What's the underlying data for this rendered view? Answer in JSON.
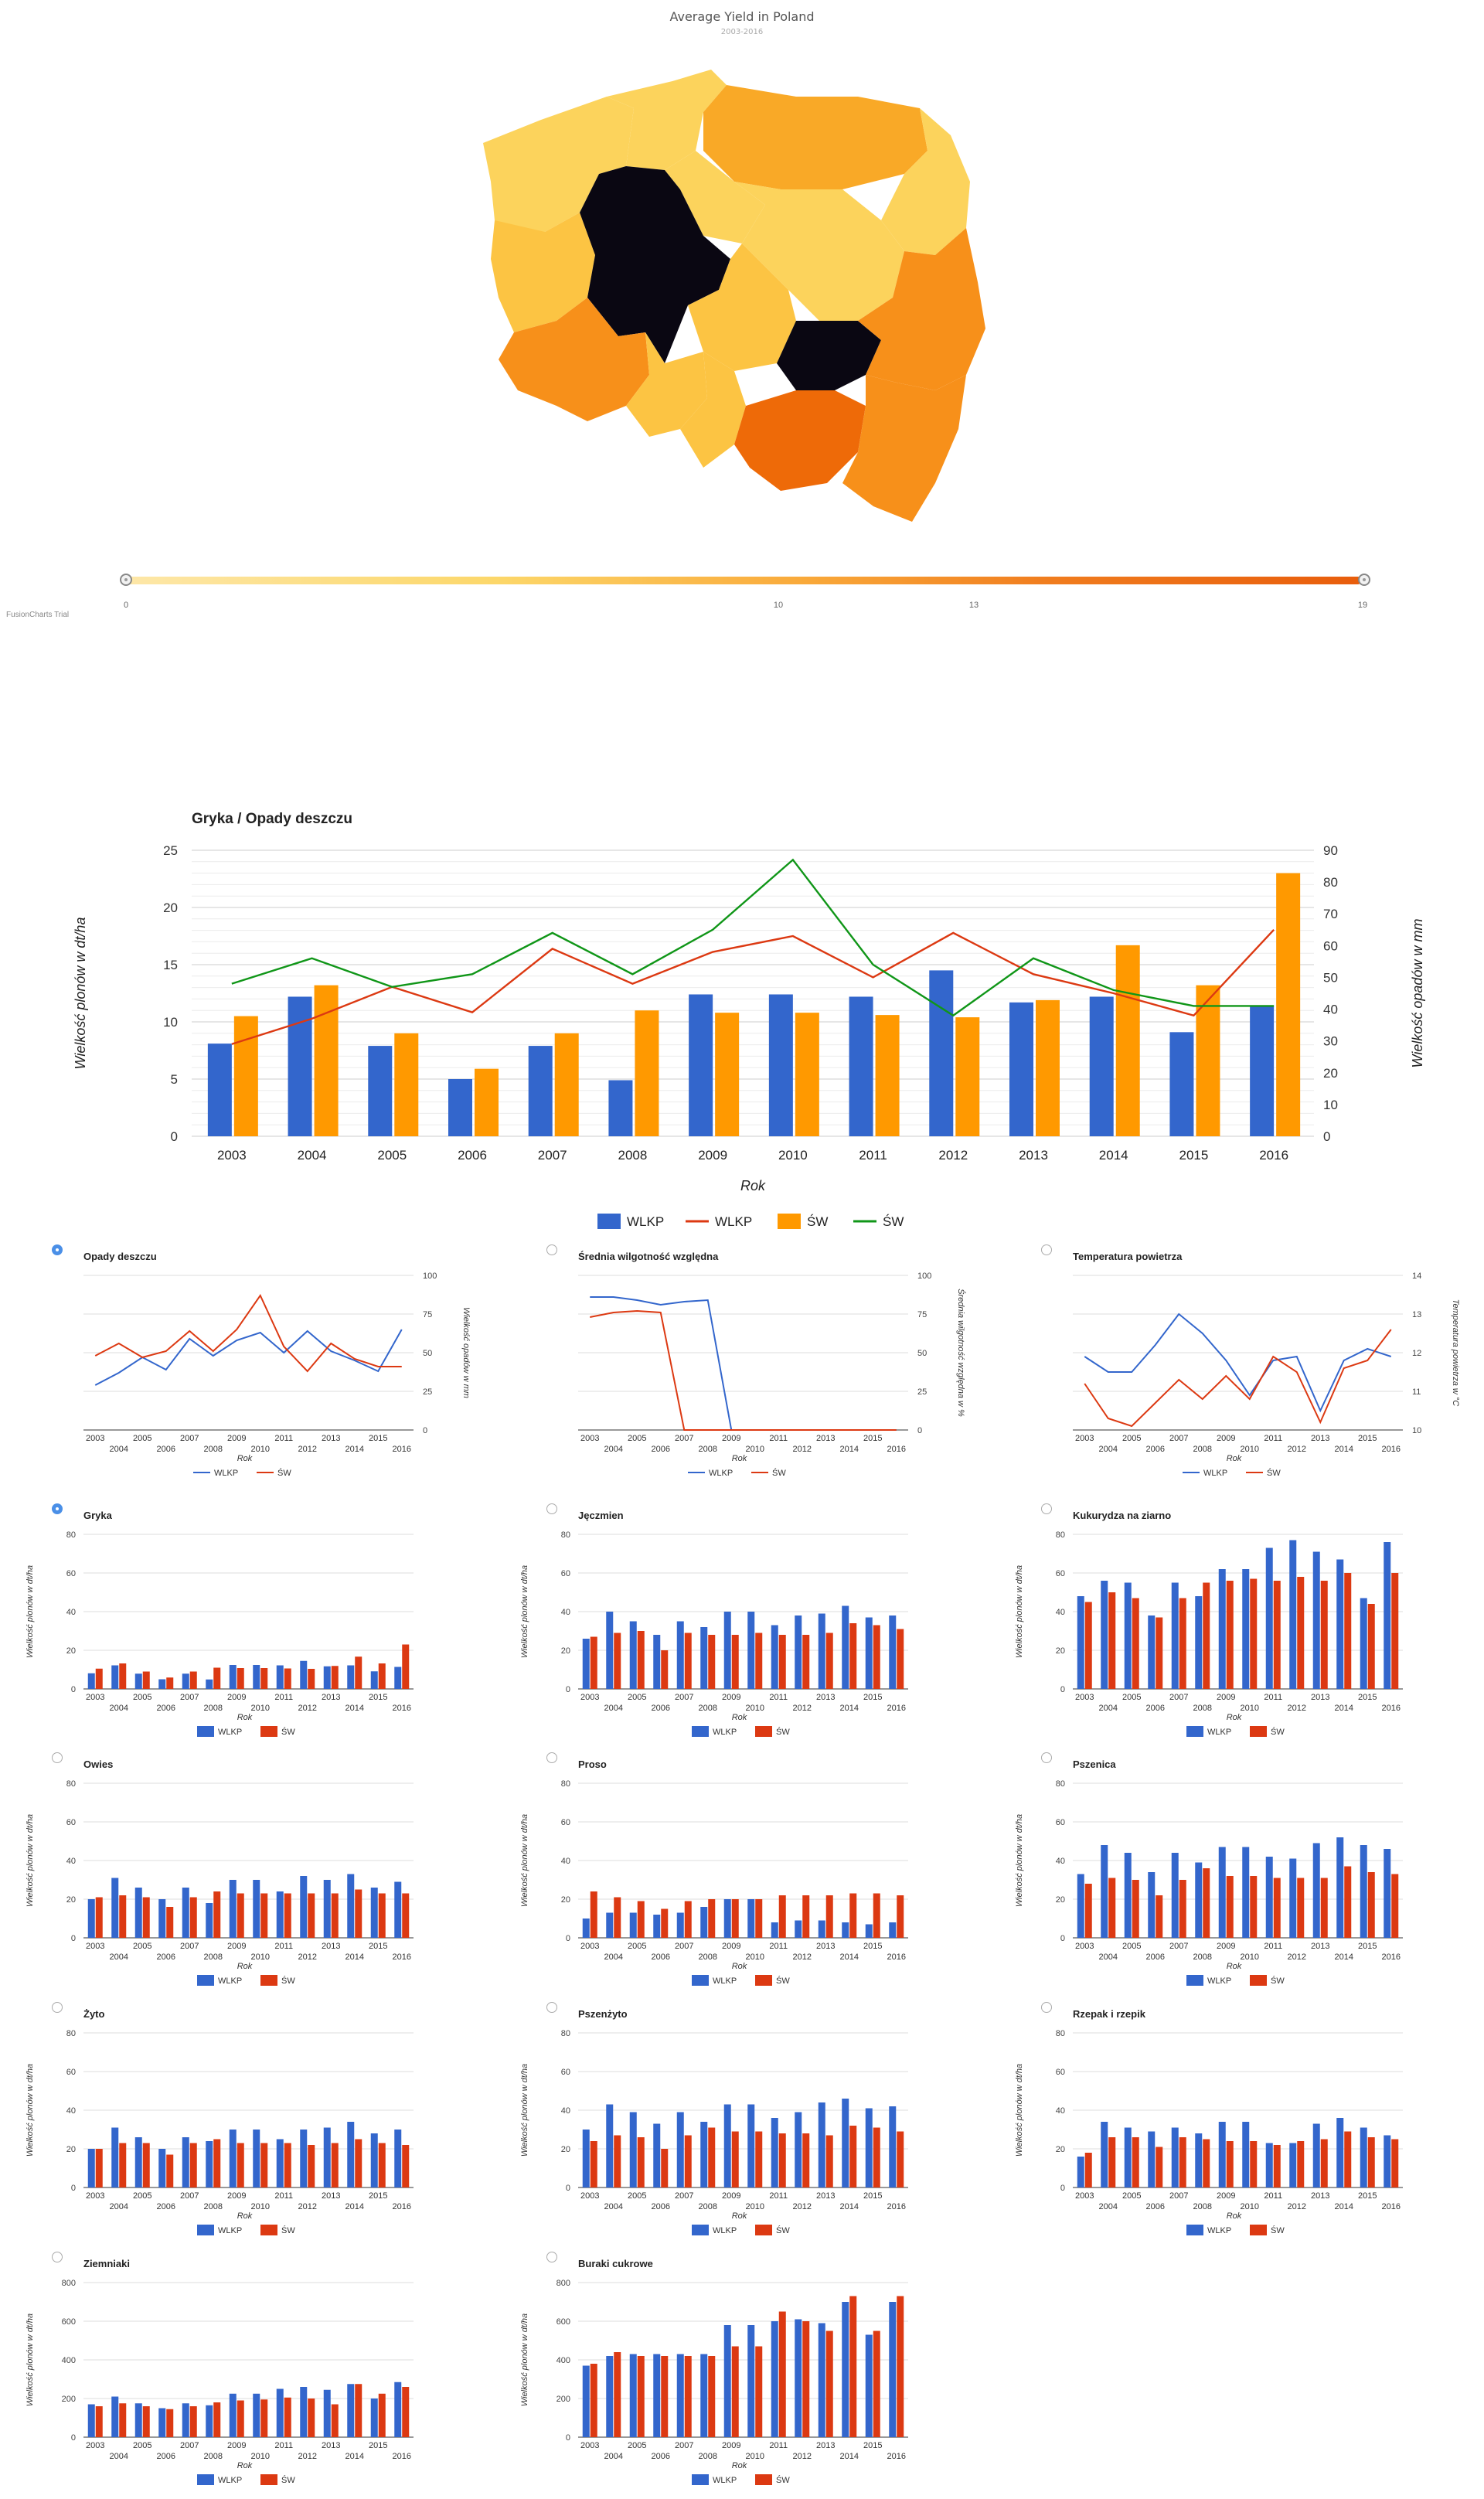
{
  "map": {
    "title": "Average Yield in Poland",
    "subtitle": "2003-2016",
    "scale_min": "0",
    "scale_ticks": [
      "10",
      "13"
    ],
    "scale_max": "19",
    "watermark": "FusionCharts Trial"
  },
  "main_chart": {
    "title": "Gryka / Opady deszczu",
    "ylabel_left": "Wielkość plonów w dt/ha",
    "ylabel_right": "Wielkość opadów w mm",
    "xlabel": "Rok",
    "legend": [
      "WLKP",
      "WLKP",
      "ŚW",
      "ŚW"
    ]
  },
  "weather_charts": [
    {
      "title": "Opady deszczu",
      "ylabel": "Wielkość opadów w mm"
    },
    {
      "title": "Średnia wilgotność względna",
      "ylabel": "Średnia wilgotność względna w %"
    },
    {
      "title": "Temperatura powietrza",
      "ylabel": "Temperatura powietrza w °C"
    }
  ],
  "crop_labels": {
    "ylabel": "Wielkość plonów w dt/ha",
    "xlabel": "Rok",
    "series1": "WLKP",
    "series2": "ŚW"
  },
  "colors": {
    "blue": "#3366cc",
    "red": "#dc3912",
    "orange": "#ff9900",
    "green": "#109618"
  },
  "chart_data": [
    {
      "type": "bar",
      "name": "main",
      "categories": [
        "2003",
        "2004",
        "2005",
        "2006",
        "2007",
        "2008",
        "2009",
        "2010",
        "2011",
        "2012",
        "2013",
        "2014",
        "2015",
        "2016"
      ],
      "series": [
        {
          "name": "WLKP",
          "type": "bar",
          "values": [
            8.1,
            12.2,
            7.9,
            5.0,
            7.9,
            4.9,
            12.4,
            12.4,
            12.2,
            14.5,
            11.7,
            12.2,
            9.1,
            11.4
          ]
        },
        {
          "name": "ŚW",
          "type": "bar",
          "values": [
            10.5,
            13.2,
            9.0,
            5.9,
            9.0,
            11.0,
            10.8,
            10.8,
            10.6,
            10.4,
            11.9,
            16.7,
            13.2,
            23.0
          ]
        },
        {
          "name": "WLKP",
          "type": "line",
          "axis": "right",
          "values": [
            29,
            37,
            47,
            39,
            59,
            48,
            58,
            63,
            50,
            64,
            51,
            45,
            38,
            65
          ]
        },
        {
          "name": "ŚW",
          "type": "line",
          "axis": "right",
          "values": [
            48,
            56,
            47,
            51,
            64,
            51,
            65,
            87,
            54,
            38,
            56,
            46,
            41,
            41
          ]
        }
      ],
      "ylim": [
        0,
        25
      ],
      "y2lim": [
        0,
        90
      ]
    },
    {
      "type": "line",
      "name": "Opady deszczu",
      "x": [
        "2003",
        "2004",
        "2005",
        "2006",
        "2007",
        "2008",
        "2009",
        "2010",
        "2011",
        "2012",
        "2013",
        "2014",
        "2015",
        "2016"
      ],
      "series": [
        {
          "name": "WLKP",
          "values": [
            29,
            37,
            47,
            39,
            59,
            48,
            58,
            63,
            50,
            64,
            51,
            45,
            38,
            65
          ]
        },
        {
          "name": "ŚW",
          "values": [
            48,
            56,
            47,
            51,
            64,
            51,
            65,
            87,
            54,
            38,
            56,
            46,
            41,
            41
          ]
        }
      ],
      "ylim": [
        0,
        100
      ],
      "ticks": [
        "0",
        "25",
        "50",
        "75",
        "100"
      ]
    },
    {
      "type": "line",
      "name": "Średnia wilgotność względna",
      "x": [
        "2003",
        "2004",
        "2005",
        "2006",
        "2007",
        "2008",
        "2009",
        "2010",
        "2011",
        "2012",
        "2013",
        "2014",
        "2015",
        "2016"
      ],
      "series": [
        {
          "name": "WLKP",
          "values": [
            86,
            86,
            84,
            81,
            83,
            84,
            0,
            0,
            0,
            0,
            0,
            0,
            0,
            0
          ]
        },
        {
          "name": "ŚW",
          "values": [
            73,
            76,
            77,
            76,
            0,
            0,
            0,
            0,
            0,
            0,
            0,
            0,
            0,
            0
          ]
        }
      ],
      "ylim": [
        0,
        100
      ],
      "ticks": [
        "0",
        "25",
        "50",
        "75",
        "100"
      ]
    },
    {
      "type": "line",
      "name": "Temperatura powietrza",
      "x": [
        "2003",
        "2004",
        "2005",
        "2006",
        "2007",
        "2008",
        "2009",
        "2010",
        "2011",
        "2012",
        "2013",
        "2014",
        "2015",
        "2016"
      ],
      "series": [
        {
          "name": "WLKP",
          "values": [
            11.9,
            11.5,
            11.5,
            12.2,
            13.0,
            12.5,
            11.8,
            10.9,
            11.8,
            11.9,
            10.5,
            11.8,
            12.1,
            11.9
          ]
        },
        {
          "name": "ŚW",
          "values": [
            11.2,
            10.3,
            10.1,
            10.7,
            11.3,
            10.8,
            11.4,
            10.8,
            11.9,
            11.5,
            10.2,
            11.6,
            11.8,
            12.6
          ]
        }
      ],
      "ylim": [
        10,
        14
      ],
      "ticks": [
        "10",
        "11",
        "12",
        "13",
        "14"
      ]
    },
    {
      "type": "bar",
      "name": "Gryka",
      "ylim": [
        0,
        80
      ],
      "ticks": [
        "0",
        "20",
        "40",
        "60",
        "80"
      ],
      "categories": [
        "2003",
        "2004",
        "2005",
        "2006",
        "2007",
        "2008",
        "2009",
        "2010",
        "2011",
        "2012",
        "2013",
        "2014",
        "2015",
        "2016"
      ],
      "series": [
        {
          "name": "WLKP",
          "values": [
            8.1,
            12.2,
            7.9,
            5.0,
            7.9,
            4.9,
            12.4,
            12.4,
            12.2,
            14.5,
            11.7,
            12.2,
            9.1,
            11.4
          ]
        },
        {
          "name": "ŚW",
          "values": [
            10.5,
            13.2,
            9.0,
            5.9,
            9.0,
            11.0,
            10.8,
            10.8,
            10.6,
            10.4,
            11.9,
            16.7,
            13.2,
            23.0
          ]
        }
      ]
    },
    {
      "type": "bar",
      "name": "Jęczmien",
      "ylim": [
        0,
        80
      ],
      "ticks": [
        "0",
        "20",
        "40",
        "60",
        "80"
      ],
      "categories": [
        "2003",
        "2004",
        "2005",
        "2006",
        "2007",
        "2008",
        "2009",
        "2010",
        "2011",
        "2012",
        "2013",
        "2014",
        "2015",
        "2016"
      ],
      "series": [
        {
          "name": "WLKP",
          "values": [
            26,
            40,
            35,
            28,
            35,
            32,
            40,
            40,
            33,
            38,
            39,
            43,
            37,
            38
          ]
        },
        {
          "name": "ŚW",
          "values": [
            27,
            29,
            30,
            20,
            29,
            28,
            28,
            29,
            28,
            28,
            29,
            34,
            33,
            31
          ]
        }
      ]
    },
    {
      "type": "bar",
      "name": "Kukurydza na ziarno",
      "ylim": [
        0,
        80
      ],
      "ticks": [
        "0",
        "20",
        "40",
        "60",
        "80"
      ],
      "categories": [
        "2003",
        "2004",
        "2005",
        "2006",
        "2007",
        "2008",
        "2009",
        "2010",
        "2011",
        "2012",
        "2013",
        "2014",
        "2015",
        "2016"
      ],
      "series": [
        {
          "name": "WLKP",
          "values": [
            48,
            56,
            55,
            38,
            55,
            48,
            62,
            62,
            73,
            77,
            71,
            67,
            47,
            76
          ]
        },
        {
          "name": "ŚW",
          "values": [
            45,
            50,
            47,
            37,
            47,
            55,
            56,
            57,
            56,
            58,
            56,
            60,
            44,
            60
          ]
        }
      ]
    },
    {
      "type": "bar",
      "name": "Owies",
      "ylim": [
        0,
        80
      ],
      "ticks": [
        "0",
        "20",
        "40",
        "60",
        "80"
      ],
      "categories": [
        "2003",
        "2004",
        "2005",
        "2006",
        "2007",
        "2008",
        "2009",
        "2010",
        "2011",
        "2012",
        "2013",
        "2014",
        "2015",
        "2016"
      ],
      "series": [
        {
          "name": "WLKP",
          "values": [
            20,
            31,
            26,
            20,
            26,
            18,
            30,
            30,
            24,
            32,
            30,
            33,
            26,
            29
          ]
        },
        {
          "name": "ŚW",
          "values": [
            21,
            22,
            21,
            16,
            21,
            24,
            23,
            23,
            23,
            23,
            23,
            25,
            23,
            23
          ]
        }
      ]
    },
    {
      "type": "bar",
      "name": "Proso",
      "ylim": [
        0,
        80
      ],
      "ticks": [
        "0",
        "20",
        "40",
        "60",
        "80"
      ],
      "categories": [
        "2003",
        "2004",
        "2005",
        "2006",
        "2007",
        "2008",
        "2009",
        "2010",
        "2011",
        "2012",
        "2013",
        "2014",
        "2015",
        "2016"
      ],
      "series": [
        {
          "name": "WLKP",
          "values": [
            10,
            13,
            13,
            12,
            13,
            16,
            20,
            20,
            8,
            9,
            9,
            8,
            7,
            8
          ]
        },
        {
          "name": "ŚW",
          "values": [
            24,
            21,
            19,
            15,
            19,
            20,
            20,
            20,
            22,
            22,
            22,
            23,
            23,
            22
          ]
        }
      ]
    },
    {
      "type": "bar",
      "name": "Pszenica",
      "ylim": [
        0,
        80
      ],
      "ticks": [
        "0",
        "20",
        "40",
        "60",
        "80"
      ],
      "categories": [
        "2003",
        "2004",
        "2005",
        "2006",
        "2007",
        "2008",
        "2009",
        "2010",
        "2011",
        "2012",
        "2013",
        "2014",
        "2015",
        "2016"
      ],
      "series": [
        {
          "name": "WLKP",
          "values": [
            33,
            48,
            44,
            34,
            44,
            39,
            47,
            47,
            42,
            41,
            49,
            52,
            48,
            46
          ]
        },
        {
          "name": "ŚW",
          "values": [
            28,
            31,
            30,
            22,
            30,
            36,
            32,
            32,
            31,
            31,
            31,
            37,
            34,
            33
          ]
        }
      ]
    },
    {
      "type": "bar",
      "name": "Żyto",
      "ylim": [
        0,
        80
      ],
      "ticks": [
        "0",
        "20",
        "40",
        "60",
        "80"
      ],
      "categories": [
        "2003",
        "2004",
        "2005",
        "2006",
        "2007",
        "2008",
        "2009",
        "2010",
        "2011",
        "2012",
        "2013",
        "2014",
        "2015",
        "2016"
      ],
      "series": [
        {
          "name": "WLKP",
          "values": [
            20,
            31,
            26,
            20,
            26,
            24,
            30,
            30,
            25,
            30,
            31,
            34,
            28,
            30
          ]
        },
        {
          "name": "ŚW",
          "values": [
            20,
            23,
            23,
            17,
            23,
            25,
            23,
            23,
            23,
            22,
            23,
            25,
            23,
            22
          ]
        }
      ]
    },
    {
      "type": "bar",
      "name": "Pszenżyto",
      "ylim": [
        0,
        80
      ],
      "ticks": [
        "0",
        "20",
        "40",
        "60",
        "80"
      ],
      "categories": [
        "2003",
        "2004",
        "2005",
        "2006",
        "2007",
        "2008",
        "2009",
        "2010",
        "2011",
        "2012",
        "2013",
        "2014",
        "2015",
        "2016"
      ],
      "series": [
        {
          "name": "WLKP",
          "values": [
            30,
            43,
            39,
            33,
            39,
            34,
            43,
            43,
            36,
            39,
            44,
            46,
            41,
            42
          ]
        },
        {
          "name": "ŚW",
          "values": [
            24,
            27,
            26,
            20,
            27,
            31,
            29,
            29,
            28,
            28,
            27,
            32,
            31,
            29
          ]
        }
      ]
    },
    {
      "type": "bar",
      "name": "Rzepak i rzepik",
      "ylim": [
        0,
        80
      ],
      "ticks": [
        "0",
        "20",
        "40",
        "60",
        "80"
      ],
      "categories": [
        "2003",
        "2004",
        "2005",
        "2006",
        "2007",
        "2008",
        "2009",
        "2010",
        "2011",
        "2012",
        "2013",
        "2014",
        "2015",
        "2016"
      ],
      "series": [
        {
          "name": "WLKP",
          "values": [
            16,
            34,
            31,
            29,
            31,
            28,
            34,
            34,
            23,
            23,
            33,
            36,
            31,
            27
          ]
        },
        {
          "name": "ŚW",
          "values": [
            18,
            26,
            26,
            21,
            26,
            25,
            24,
            24,
            22,
            24,
            25,
            29,
            26,
            25
          ]
        }
      ]
    },
    {
      "type": "bar",
      "name": "Ziemniaki",
      "ylim": [
        0,
        800
      ],
      "ticks": [
        "0",
        "200",
        "400",
        "600",
        "800"
      ],
      "categories": [
        "2003",
        "2004",
        "2005",
        "2006",
        "2007",
        "2008",
        "2009",
        "2010",
        "2011",
        "2012",
        "2013",
        "2014",
        "2015",
        "2016"
      ],
      "series": [
        {
          "name": "WLKP",
          "values": [
            170,
            210,
            175,
            150,
            175,
            165,
            225,
            225,
            250,
            260,
            245,
            275,
            200,
            285
          ]
        },
        {
          "name": "ŚW",
          "values": [
            160,
            175,
            160,
            145,
            160,
            180,
            190,
            195,
            205,
            200,
            170,
            275,
            225,
            260
          ]
        }
      ]
    },
    {
      "type": "bar",
      "name": "Buraki cukrowe",
      "ylim": [
        0,
        800
      ],
      "ticks": [
        "0",
        "200",
        "400",
        "600",
        "800"
      ],
      "categories": [
        "2003",
        "2004",
        "2005",
        "2006",
        "2007",
        "2008",
        "2009",
        "2010",
        "2011",
        "2012",
        "2013",
        "2014",
        "2015",
        "2016"
      ],
      "series": [
        {
          "name": "WLKP",
          "values": [
            370,
            420,
            430,
            430,
            430,
            430,
            580,
            580,
            600,
            610,
            590,
            700,
            530,
            700
          ]
        },
        {
          "name": "ŚW",
          "values": [
            380,
            440,
            420,
            420,
            420,
            420,
            470,
            470,
            650,
            600,
            550,
            730,
            550,
            730
          ]
        }
      ]
    }
  ]
}
